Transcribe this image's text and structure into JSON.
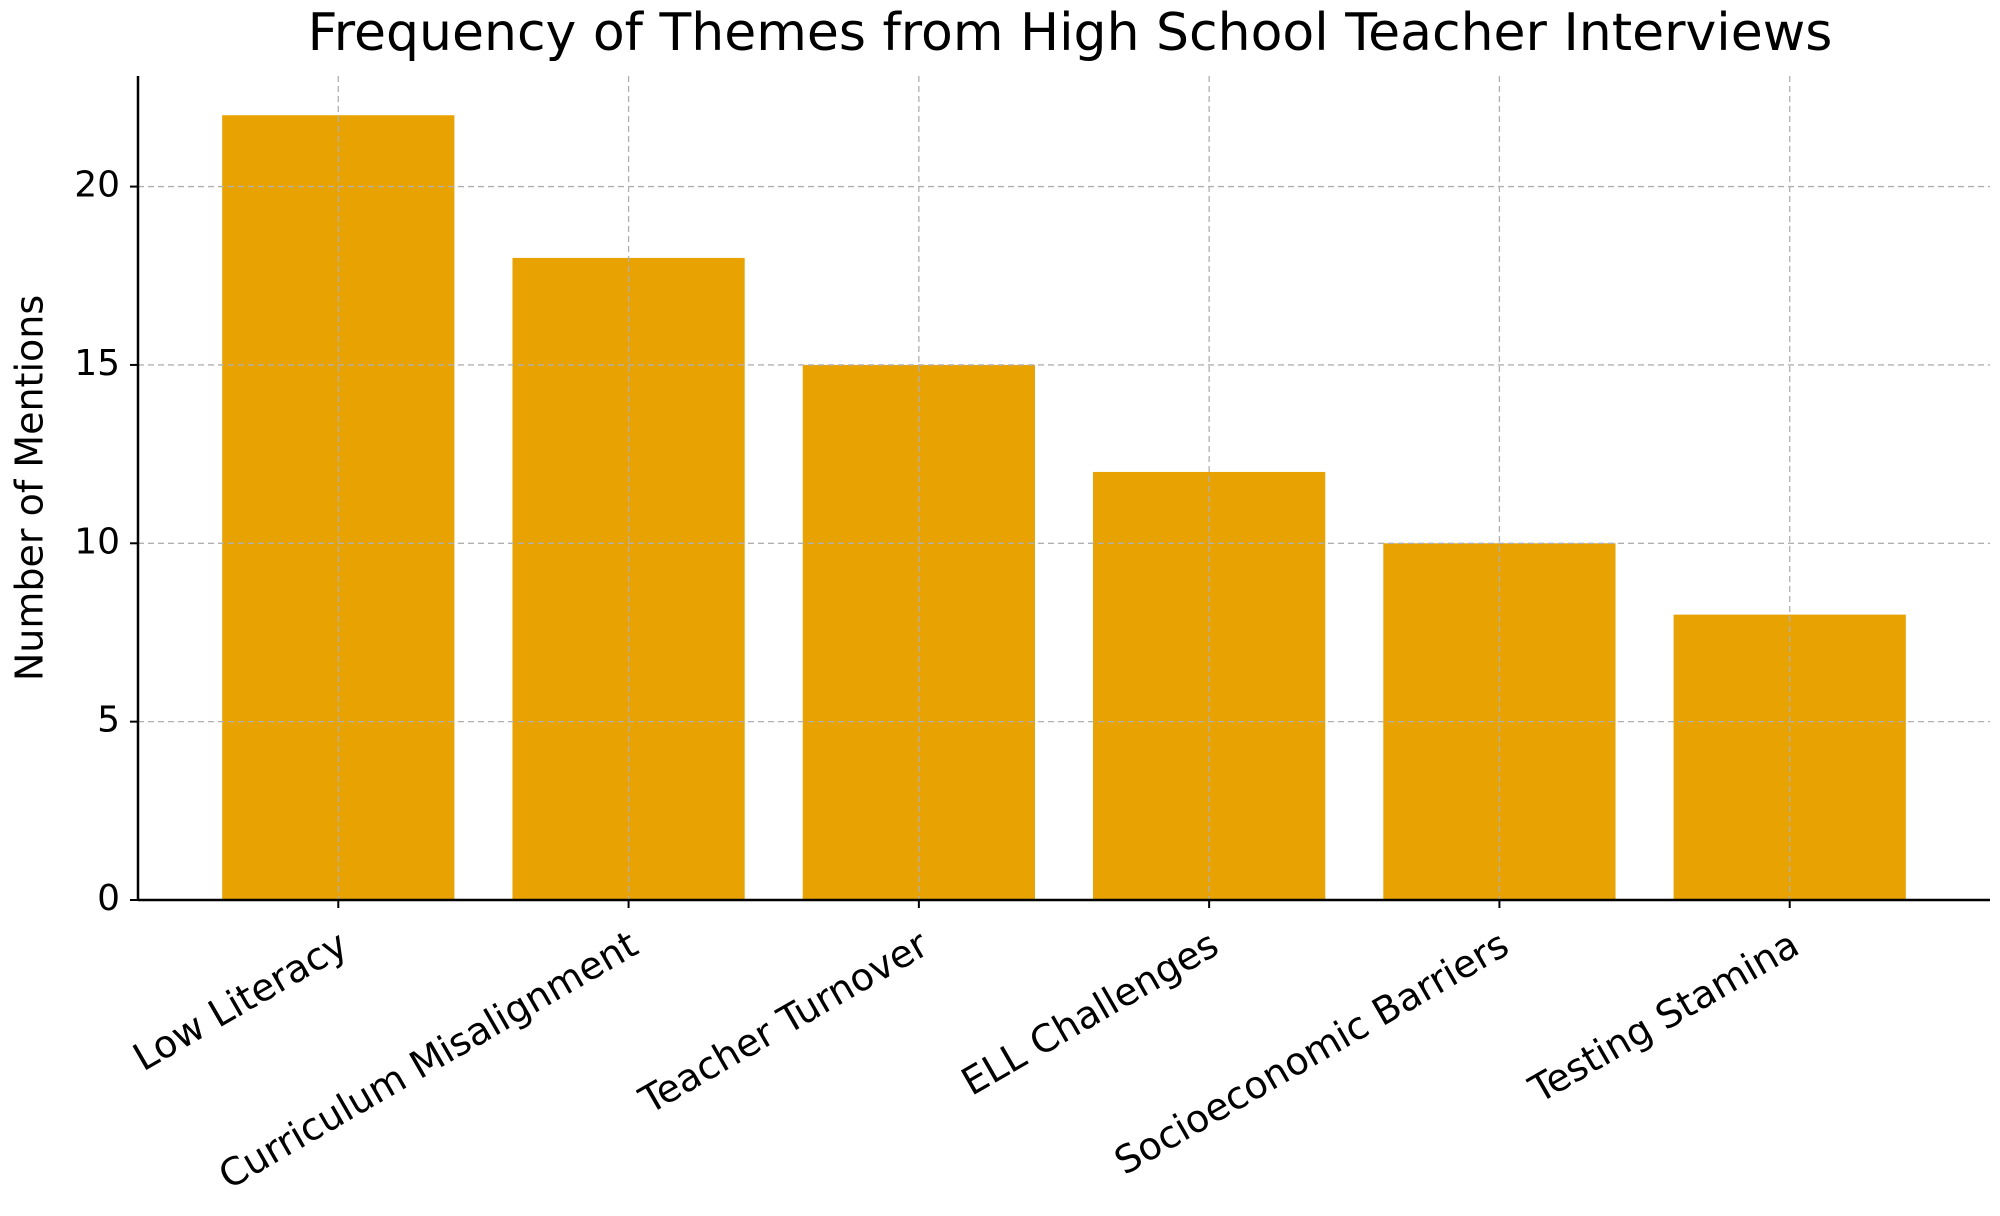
{
  "chart_data": {
    "type": "bar",
    "title": "Frequency of Themes from High School Teacher Interviews",
    "y_label": "Number of Mentions",
    "categories": [
      "Low Literacy",
      "Curriculum Misalignment",
      "Teacher Turnover",
      "ELL Challenges",
      "Socioeconomic Barriers",
      "Testing Stamina"
    ],
    "values": [
      22,
      18,
      15,
      12,
      10,
      8
    ],
    "color": "#e8a202",
    "ylim": [
      0,
      23.1
    ],
    "yticks": [
      0,
      5,
      10,
      15,
      20
    ],
    "grid": true
  }
}
